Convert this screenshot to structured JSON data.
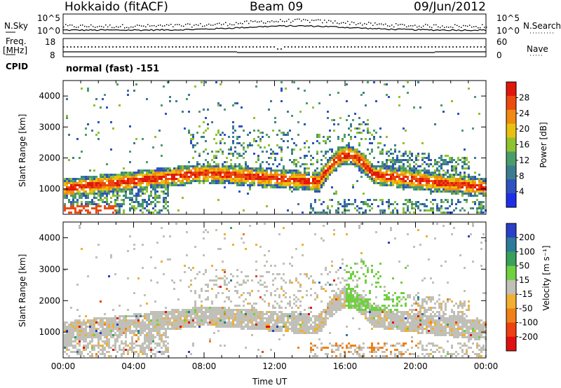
{
  "header": {
    "radar": "Hokkaido (fitACF)",
    "beam": "Beam 09",
    "date": "09/Jun/2012"
  },
  "noise_panel": {
    "left_label": "N.Sky",
    "right_label": "N.Search",
    "y_ticks_left": [
      "10^5",
      "10^0"
    ],
    "y_ticks_right": [
      "10^5",
      "10^0"
    ]
  },
  "freq_panel": {
    "left_label_line1": "Freq.",
    "left_label_line2": "[MHz]",
    "right_label": "Nave",
    "y_ticks_left": [
      "18",
      "8"
    ],
    "y_ticks_right": [
      "60",
      "0"
    ]
  },
  "cpid_panel": {
    "label": "CPID",
    "text": "normal (fast) -151"
  },
  "chart_data": [
    {
      "type": "heatmap",
      "name": "power",
      "ylabel": "Slant Range [km]",
      "y_ticks": [
        1000,
        2000,
        3000,
        4000
      ],
      "ylim": [
        180,
        4500
      ],
      "colorbar_label": "Power [dB]",
      "colorbar_ticks": [
        4,
        8,
        12,
        16,
        20,
        24,
        28
      ],
      "colorbar_colors": [
        "#1f2fe8",
        "#2e52c0",
        "#3b7d8f",
        "#4a9d6a",
        "#8fc22e",
        "#e8c010",
        "#f08a10",
        "#ec4a0e",
        "#e0180c"
      ]
    },
    {
      "type": "heatmap",
      "name": "velocity",
      "ylabel": "Slant Range [km]",
      "xlabel": "Time UT",
      "x_ticks": [
        "00:00",
        "04:00",
        "08:00",
        "12:00",
        "16:00",
        "20:00",
        "00:00"
      ],
      "y_ticks": [
        1000,
        2000,
        3000,
        4000
      ],
      "ylim": [
        180,
        4500
      ],
      "colorbar_label": "Velocity [m s⁻¹]",
      "colorbar_ticks": [
        200,
        100,
        50,
        15,
        -15,
        -50,
        -100,
        -200
      ],
      "colorbar_colors": [
        "#2a3fc8",
        "#2e7a9a",
        "#3aa05a",
        "#70d040",
        "#c0c0b8",
        "#f0b030",
        "#f08018",
        "#ee4010",
        "#e01010"
      ]
    }
  ]
}
